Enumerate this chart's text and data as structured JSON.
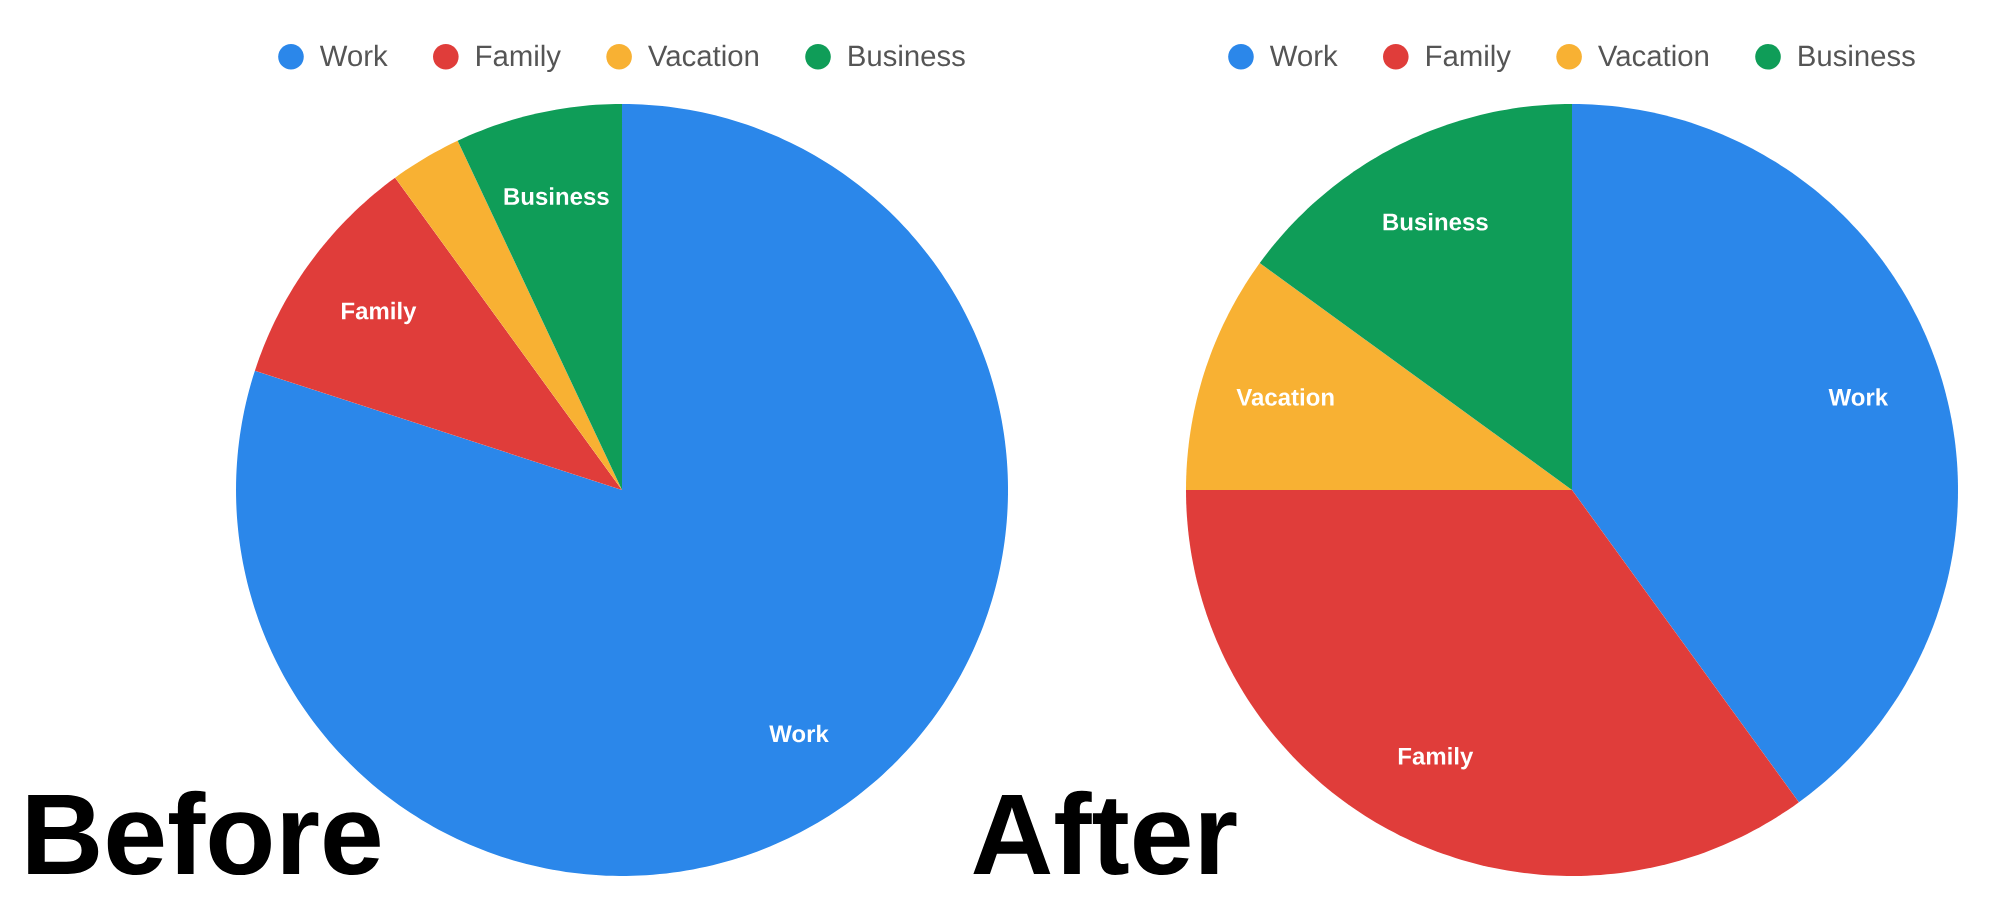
{
  "chart_data": [
    {
      "type": "pie",
      "categories": [
        "Work",
        "Family",
        "Vacation",
        "Business"
      ],
      "values": [
        80,
        10,
        3,
        7
      ],
      "colors": [
        "#2b87ea",
        "#e03d3a",
        "#f8b133",
        "#0f9d58"
      ],
      "legend": "top",
      "annotations": [
        "Before"
      ]
    },
    {
      "type": "pie",
      "categories": [
        "Work",
        "Family",
        "Vacation",
        "Business"
      ],
      "values": [
        40,
        35,
        10,
        15
      ],
      "colors": [
        "#2b87ea",
        "#e03d3a",
        "#f8b133",
        "#0f9d58"
      ],
      "legend": "top",
      "annotations": [
        "After"
      ]
    }
  ]
}
